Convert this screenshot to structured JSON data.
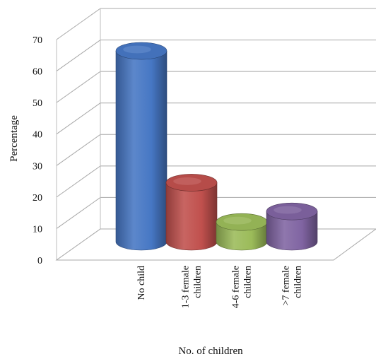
{
  "chart_data": {
    "type": "bar",
    "style": "3d-cylinder",
    "categories": [
      "No child",
      "1-3 female children",
      "4-6 female children",
      ">7 female children"
    ],
    "category_lines": [
      [
        "No child"
      ],
      [
        "1-3 female",
        "children"
      ],
      [
        "4-6 female",
        "children"
      ],
      [
        ">7 female",
        "children"
      ]
    ],
    "values": [
      63,
      19.5,
      6.5,
      10
    ],
    "colors": [
      "#4677C4",
      "#C0504D",
      "#9BBB59",
      "#8064A2"
    ],
    "xlabel": "No. of children",
    "ylabel": "Percentage",
    "ylim": [
      0,
      70
    ],
    "yticks": [
      0,
      10,
      20,
      30,
      40,
      50,
      60,
      70
    ],
    "grid": true,
    "legend": "none"
  }
}
